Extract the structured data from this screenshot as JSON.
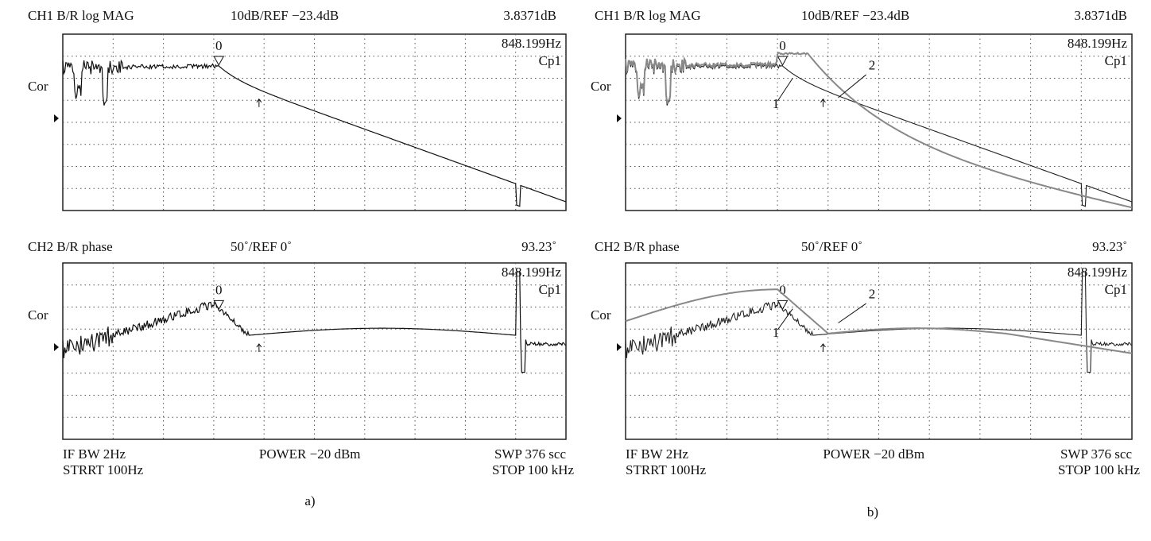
{
  "panels": [
    {
      "label": "a)",
      "screens": [
        {
          "channel": "CH1 B/R log MAG",
          "scale": "10dB/REF −23.4dB",
          "reading": "3.8371dB",
          "marker_freq": "848.199Hz",
          "marker_name": "Cp1",
          "side_label": "Cor",
          "marker_number": "0"
        },
        {
          "channel": "CH2  B/R  phase",
          "scale": "50˚/REF  0˚",
          "reading": "93.23˚",
          "marker_freq": "848.199Hz",
          "marker_name": "Cp1",
          "side_label": "Cor",
          "marker_number": "0"
        }
      ],
      "footer": {
        "if_bw": "IF BW 2Hz",
        "start": "STRRT 100Hz",
        "power": "POWER −20 dBm",
        "swp": "SWP  376  scc",
        "stop": "STOP  100  kHz"
      }
    },
    {
      "label": "b)",
      "screens": [
        {
          "channel": "CH1 B/R log MAG",
          "scale": "10dB/REF −23.4dB",
          "reading": "3.8371dB",
          "marker_freq": "848.199Hz",
          "marker_name": "Cp1",
          "side_label": "Cor",
          "marker_number": "0",
          "trace_labels": [
            "1",
            "2"
          ]
        },
        {
          "channel": "CH2  B/R  phase",
          "scale": "50˚/REF  0˚",
          "reading": "93.23˚",
          "marker_freq": "848.199Hz",
          "marker_name": "Cp1",
          "side_label": "Cor",
          "marker_number": "0",
          "trace_labels": [
            "1",
            "2"
          ]
        }
      ],
      "footer": {
        "if_bw": "IF BW 2Hz",
        "start": "STRRT 100Hz",
        "power": "POWER −20 dBm",
        "swp": "SWP  376  scc",
        "stop": "STOP  100  kHz"
      }
    }
  ]
}
